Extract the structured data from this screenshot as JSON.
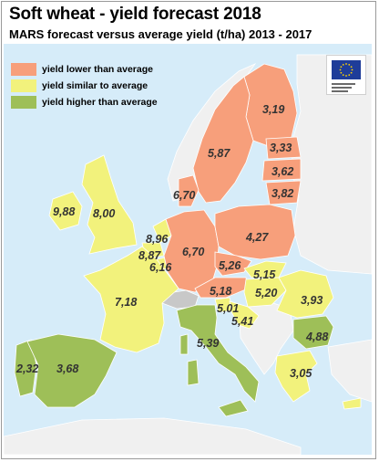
{
  "title": "Soft wheat - yield forecast 2018",
  "subtitle": "MARS forecast versus average yield (t/ha) 2013 - 2017",
  "colors": {
    "lower": "#f79f7b",
    "similar": "#f2f27c",
    "higher": "#9ebf58",
    "non_eu": "#f0f0f0",
    "neutral": "#c8c8c8",
    "sea": "#d6ecf9",
    "border": "#ffffff"
  },
  "legend": [
    {
      "label": "yield lower than average",
      "class": "lower"
    },
    {
      "label": "yield similar to average",
      "class": "similar"
    },
    {
      "label": "yield higher than average",
      "class": "higher"
    }
  ],
  "logo": {
    "name": "european-commission-logo"
  },
  "values": {
    "finland": "3,19",
    "sweden": "5,87",
    "estonia": "3,33",
    "latvia": "3,62",
    "lithuania": "3,82",
    "denmark": "6,70",
    "ireland": "9,88",
    "united_kingdom": "8,00",
    "netherlands": "8,96",
    "belgium": "8,87",
    "luxembourg": "6,16",
    "germany": "6,70",
    "poland": "4,27",
    "czechia": "5,26",
    "slovakia": "5,15",
    "austria": "5,18",
    "hungary": "5,20",
    "slovenia": "5,01",
    "croatia": "5,41",
    "romania": "3,93",
    "bulgaria": "4,88",
    "france": "7,18",
    "italy": "5,39",
    "portugal": "2,32",
    "spain": "3,68",
    "greece": "3,05"
  }
}
